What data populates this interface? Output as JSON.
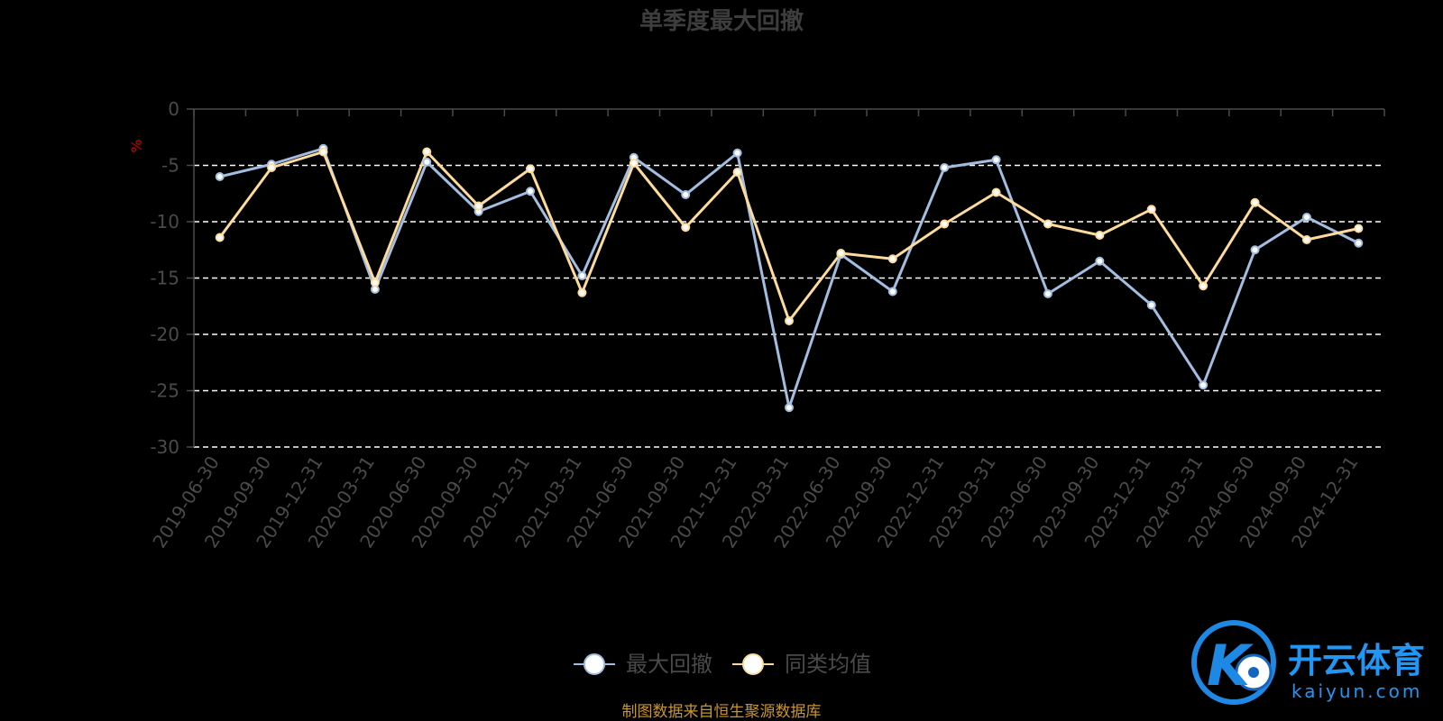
{
  "chart_data": {
    "type": "line",
    "title": "单季度最大回撤",
    "ylabel": "%",
    "ylim": [
      -30,
      0
    ],
    "yticks": [
      0,
      -5,
      -10,
      -15,
      -20,
      -25,
      -30
    ],
    "grid": true,
    "legend_position": "bottom",
    "categories": [
      "2019-06-30",
      "2019-09-30",
      "2019-12-31",
      "2020-03-31",
      "2020-06-30",
      "2020-09-30",
      "2020-12-31",
      "2021-03-31",
      "2021-06-30",
      "2021-09-30",
      "2021-12-31",
      "2022-03-31",
      "2022-06-30",
      "2022-09-30",
      "2022-12-31",
      "2023-03-31",
      "2023-06-30",
      "2023-09-30",
      "2023-12-31",
      "2024-03-31",
      "2024-06-30",
      "2024-09-30",
      "2024-12-31"
    ],
    "series": [
      {
        "name": "最大回撤",
        "color": "#a3bde0",
        "values": [
          -6.0,
          -4.9,
          -3.5,
          -16.0,
          -4.7,
          -9.1,
          -7.3,
          -14.8,
          -4.3,
          -7.6,
          -3.9,
          -26.5,
          -12.9,
          -16.2,
          -5.2,
          -4.5,
          -16.4,
          -13.5,
          -17.4,
          -24.5,
          -12.5,
          -9.6,
          -11.9
        ]
      },
      {
        "name": "同类均值",
        "color": "#fddb9c",
        "values": [
          -11.4,
          -5.2,
          -3.8,
          -15.4,
          -3.8,
          -8.6,
          -5.3,
          -16.3,
          -4.8,
          -10.5,
          -5.6,
          -18.8,
          -12.8,
          -13.3,
          -10.2,
          -7.4,
          -10.2,
          -11.2,
          -8.9,
          -15.7,
          -8.3,
          -11.6,
          -10.6
        ]
      }
    ],
    "source_note": "制图数据来自恒生聚源数据库"
  },
  "watermark": {
    "brand_cn": "开云体育",
    "brand_en": "kaiyun.com",
    "logo_text": "K"
  },
  "colors": {
    "background": "#000000",
    "axis": "#4a4a4a",
    "grid": "#ffffff",
    "series1": "#a3bde0",
    "series2": "#fddb9c",
    "brand": "#2196f3"
  }
}
